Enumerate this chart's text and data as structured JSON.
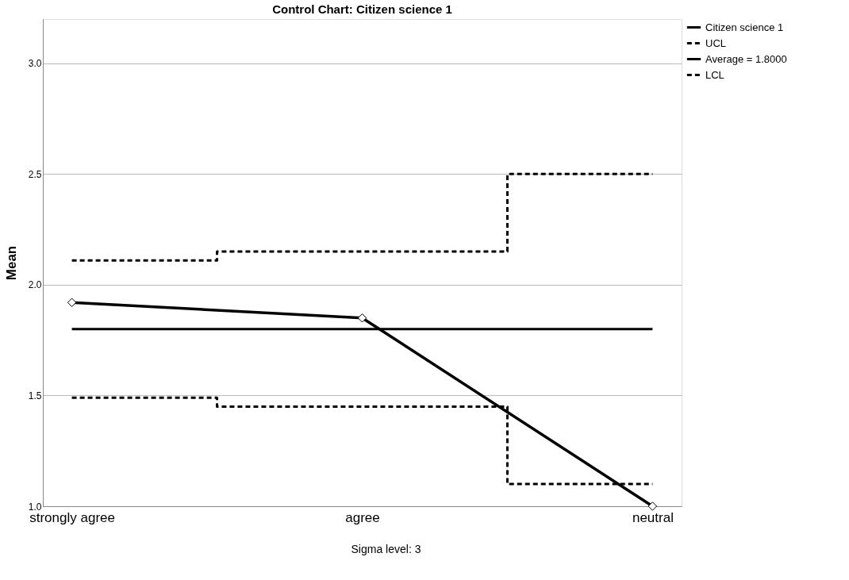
{
  "chart_data": {
    "type": "line",
    "title": "Control Chart: Citizen science 1",
    "ylabel": "Mean",
    "categories": [
      "strongly agree",
      "agree",
      "neutral"
    ],
    "series": [
      {
        "name": "Citizen science 1",
        "type": "line",
        "color": "#000000",
        "marker": "diamond",
        "line_style": "solid",
        "values": [
          1.92,
          1.85,
          1.0
        ]
      },
      {
        "name": "UCL",
        "type": "step",
        "color": "#000000",
        "marker": "none",
        "line_style": "dashed",
        "values": [
          2.11,
          2.15,
          2.5
        ]
      },
      {
        "name": "Average = 1.8000",
        "type": "line",
        "color": "#000000",
        "marker": "none",
        "line_style": "solid",
        "values": [
          1.8,
          1.8,
          1.8
        ]
      },
      {
        "name": "LCL",
        "type": "step",
        "color": "#000000",
        "marker": "none",
        "line_style": "dashed",
        "values": [
          1.49,
          1.45,
          1.1
        ]
      }
    ],
    "ylim": [
      1.0,
      3.2
    ],
    "yticks": [
      {
        "value": 1.0,
        "label": "1.0"
      },
      {
        "value": 1.5,
        "label": "1.5"
      },
      {
        "value": 2.0,
        "label": "2.0"
      },
      {
        "value": 2.5,
        "label": "2.5"
      },
      {
        "value": 3.0,
        "label": "3.0"
      }
    ],
    "grid": "y",
    "legend": "top right",
    "annotations": [
      "Sigma level:    3"
    ]
  }
}
